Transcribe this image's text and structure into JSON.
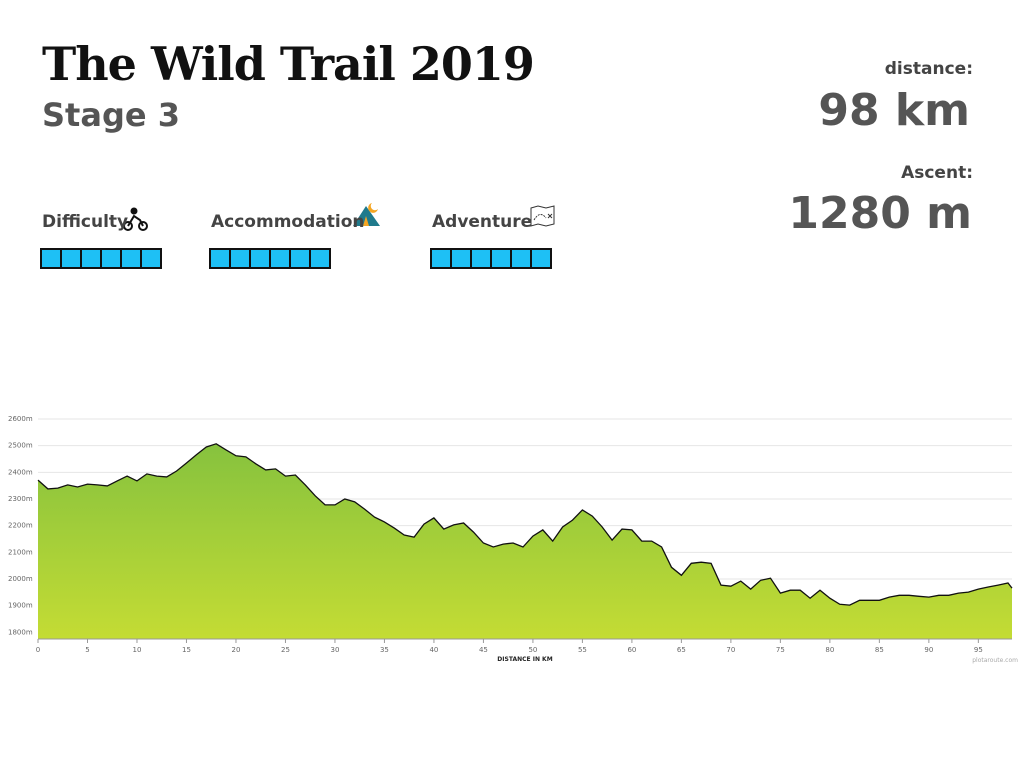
{
  "header": {
    "title": "The Wild Trail 2019",
    "subtitle": "Stage 3"
  },
  "stats": [
    {
      "label": "distance:",
      "value": "98 km"
    },
    {
      "label": "Ascent:",
      "value": "1280 m"
    }
  ],
  "ratings": [
    {
      "label": "Difficulty",
      "value": 6,
      "max": 6
    },
    {
      "label": "Accommodation",
      "value": 6,
      "max": 6
    },
    {
      "label": "Adventure",
      "value": 6,
      "max": 6
    }
  ],
  "chart_data": {
    "type": "area",
    "x_label": "DISTANCE IN KM",
    "credit": "plotaroute.com",
    "x": [
      0,
      1,
      2,
      3,
      4,
      5,
      6,
      7,
      8,
      9,
      10,
      11,
      12,
      13,
      14,
      15,
      16,
      17,
      18,
      19,
      20,
      21,
      22,
      23,
      24,
      25,
      26,
      27,
      28,
      29,
      30,
      31,
      32,
      33,
      34,
      35,
      36,
      37,
      38,
      39,
      40,
      41,
      42,
      43,
      44,
      45,
      46,
      47,
      48,
      49,
      50,
      51,
      52,
      53,
      54,
      55,
      56,
      57,
      58,
      59,
      60,
      61,
      62,
      63,
      64,
      65,
      66,
      67,
      68,
      69,
      70,
      71,
      72,
      73,
      74,
      75,
      76,
      77,
      78,
      79,
      80,
      81,
      82,
      83,
      84,
      85,
      86,
      87,
      88,
      89,
      90,
      91,
      92,
      93,
      94,
      95,
      96,
      97,
      98,
      98.4
    ],
    "values": [
      2371,
      2338,
      2341,
      2353,
      2345,
      2356,
      2353,
      2349,
      2368,
      2386,
      2368,
      2394,
      2386,
      2383,
      2405,
      2435,
      2466,
      2495,
      2507,
      2484,
      2462,
      2458,
      2432,
      2409,
      2413,
      2386,
      2390,
      2353,
      2312,
      2278,
      2278,
      2300,
      2289,
      2262,
      2232,
      2214,
      2191,
      2165,
      2157,
      2206,
      2229,
      2187,
      2203,
      2210,
      2176,
      2135,
      2120,
      2131,
      2135,
      2120,
      2161,
      2184,
      2142,
      2195,
      2221,
      2259,
      2236,
      2195,
      2146,
      2187,
      2184,
      2142,
      2142,
      2120,
      2044,
      2014,
      2059,
      2063,
      2059,
      1977,
      1973,
      1992,
      1962,
      1995,
      2003,
      1947,
      1958,
      1958,
      1928,
      1958,
      1928,
      1905,
      1902,
      1920,
      1920,
      1920,
      1932,
      1939,
      1939,
      1935,
      1932,
      1939,
      1939,
      1947,
      1951,
      1962,
      1970,
      1977,
      1985,
      1966
    ],
    "color_top": "#86c23e",
    "color_bottom": "#c4dc34",
    "line_color": "#111111",
    "xlim": [
      0,
      98.4
    ],
    "ylim": [
      1775,
      2600
    ],
    "xticks": [
      0,
      5,
      10,
      15,
      20,
      25,
      30,
      35,
      40,
      45,
      50,
      55,
      60,
      65,
      70,
      75,
      80,
      85,
      90,
      95
    ],
    "yticks": [
      {
        "value": 1800,
        "label": "1800m"
      },
      {
        "value": 1900,
        "label": "1900m"
      },
      {
        "value": 2000,
        "label": "2000m"
      },
      {
        "value": 2100,
        "label": "2100m"
      },
      {
        "value": 2200,
        "label": "2200m"
      },
      {
        "value": 2300,
        "label": "2300m"
      },
      {
        "value": 2400,
        "label": "2400m"
      },
      {
        "value": 2500,
        "label": "2500m"
      },
      {
        "value": 2600,
        "label": "2600m"
      }
    ],
    "grid": true
  }
}
